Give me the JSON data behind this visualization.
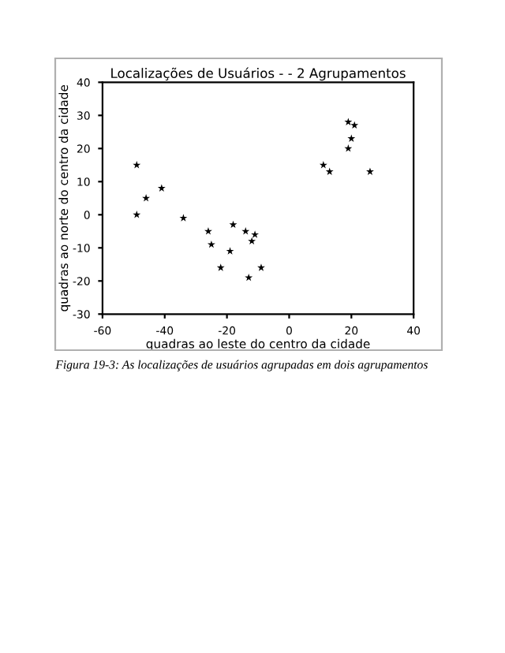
{
  "chart_data": {
    "type": "scatter",
    "title": "Localizações de Usuários - - 2 Agrupamentos",
    "xlabel": "quadras ao leste do centro da cidade",
    "ylabel": "quadras ao norte do centro da cidade",
    "x": [
      -49,
      -49,
      -46,
      -41,
      -34,
      -26,
      -25,
      -22,
      -19,
      -18,
      -14,
      -13,
      -12,
      -11,
      -9,
      11,
      13,
      19,
      19,
      20,
      21,
      26
    ],
    "series": [
      {
        "color": "#000000",
        "values": [
          15,
          0,
          5,
          8,
          -1,
          -5,
          -9,
          -16,
          -11,
          -3,
          -5,
          -19,
          -8,
          -6,
          -16,
          15,
          13,
          20,
          28,
          23,
          27,
          13
        ]
      }
    ],
    "xlim": [
      -60,
      40
    ],
    "xticks": [
      -60,
      -40,
      -20,
      0,
      20,
      40
    ],
    "ylim": [
      -30,
      40
    ],
    "yticks": [
      -30,
      -20,
      -10,
      0,
      10,
      20,
      30,
      40
    ],
    "marker": "star",
    "grid": false,
    "legend": false,
    "annotations": [
      "Figura 19-3: As localizações de usuários agrupadas em dois agrupamentos"
    ]
  }
}
